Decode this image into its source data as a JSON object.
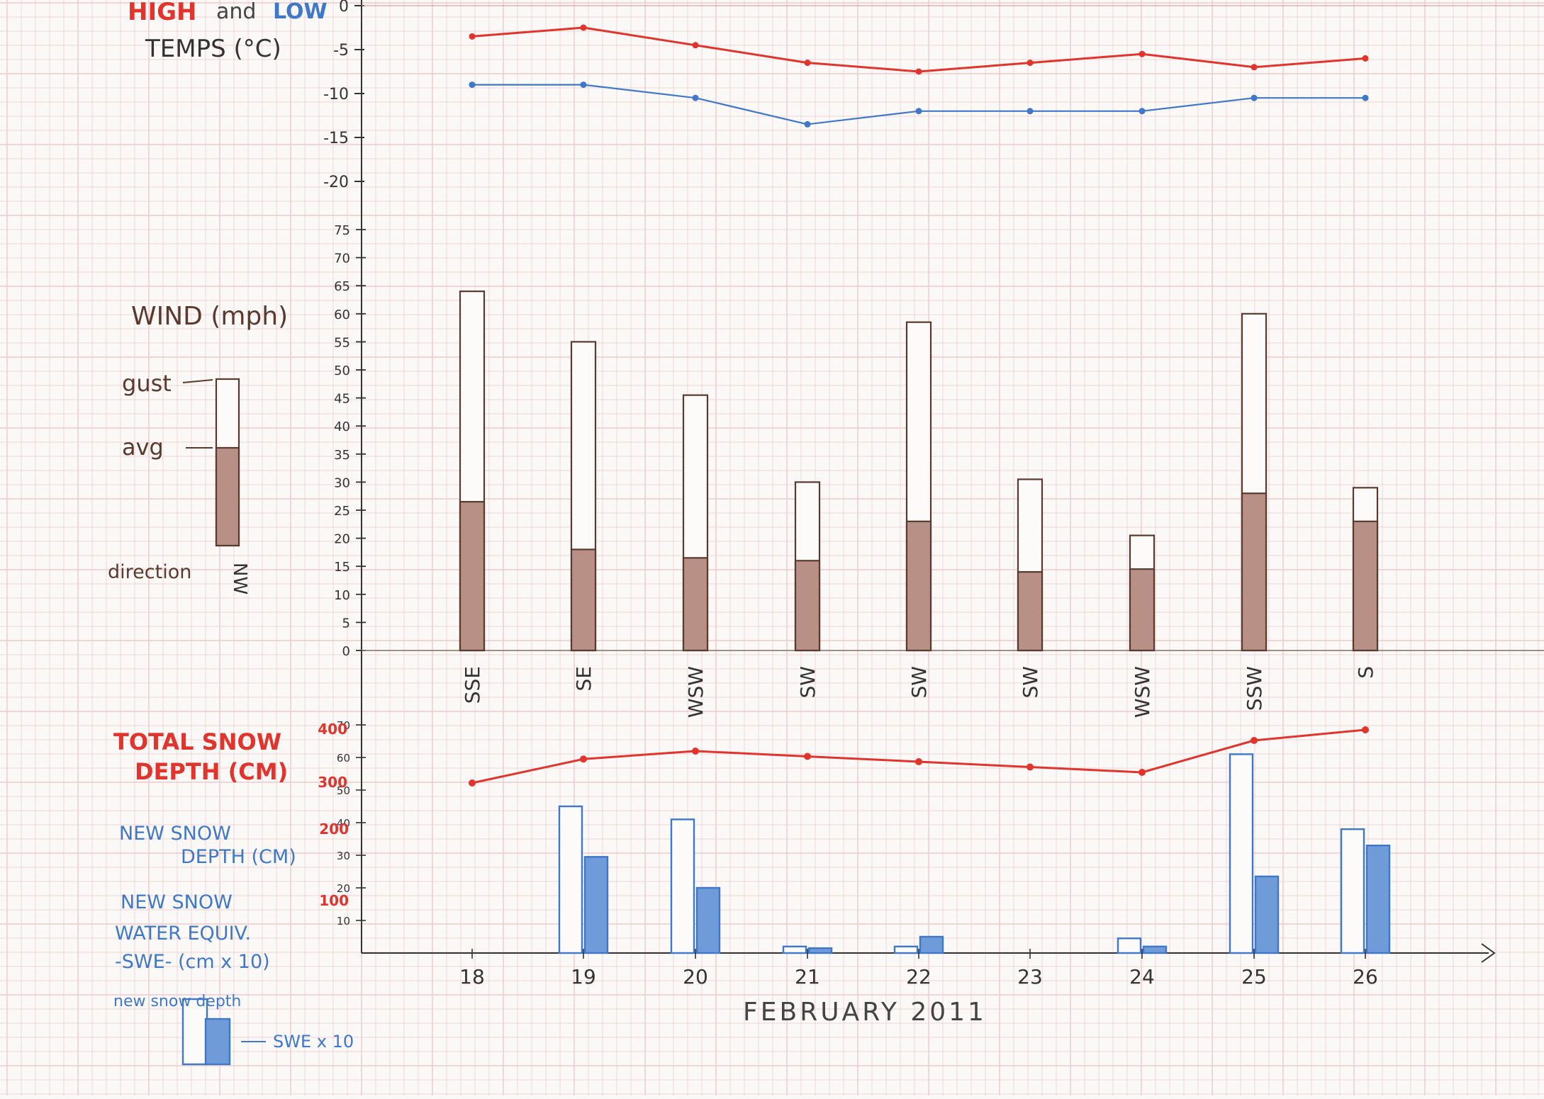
{
  "colors": {
    "paper": "#fbf9f8",
    "grid": "#efc9c9",
    "high": "#e0342c",
    "low": "#3f78c8",
    "wind_ink": "#5a3a2e",
    "wind_fill": "#b89085",
    "snow_total": "#e0342c",
    "snow_new": "#3f78c8",
    "axis": "#333333"
  },
  "chart_data": [
    {
      "type": "line",
      "title_high": "HIGH",
      "title_and": "and",
      "title_low": "LOW",
      "title_rest": "TEMPS (°C)",
      "x": [
        "18",
        "19",
        "20",
        "21",
        "22",
        "23",
        "24",
        "25",
        "26"
      ],
      "series": [
        {
          "name": "HIGH",
          "values": [
            -3.5,
            -2.5,
            -4.5,
            -6.5,
            -7.5,
            -6.5,
            -5.5,
            -7,
            -6
          ]
        },
        {
          "name": "LOW",
          "values": [
            -9,
            -9,
            -10.5,
            -13.5,
            -12,
            -12,
            -12,
            -10.5,
            -10.5
          ]
        }
      ],
      "ylim": [
        -20,
        0
      ],
      "yticks": [
        "0",
        "-5",
        "-10",
        "-15",
        "-20"
      ]
    },
    {
      "type": "bar",
      "title": "WIND (mph)",
      "categories": [
        "18",
        "19",
        "20",
        "21",
        "22",
        "23",
        "24",
        "25",
        "26"
      ],
      "series": [
        {
          "name": "gust",
          "values": [
            64,
            55,
            45.5,
            30,
            58.5,
            30.5,
            20.5,
            60,
            29
          ]
        },
        {
          "name": "avg",
          "values": [
            26.5,
            18,
            16.5,
            16,
            23,
            14,
            14.5,
            28,
            23
          ]
        }
      ],
      "directions": [
        "SSE",
        "SE",
        "WSW",
        "SW",
        "SW",
        "SW",
        "WSW",
        "SSW",
        "S"
      ],
      "ylim": [
        0,
        75
      ],
      "yticks": [
        "0",
        "5",
        "10",
        "15",
        "20",
        "25",
        "30",
        "35",
        "40",
        "45",
        "50",
        "55",
        "60",
        "65",
        "70",
        "75"
      ],
      "legend": {
        "gust": "gust",
        "avg": "avg",
        "direction": "direction",
        "dir_example": "NW"
      }
    },
    {
      "type": "line",
      "title": "TOTAL SNOW DEPTH (CM)",
      "x": [
        "18",
        "19",
        "20",
        "21",
        "22",
        "23",
        "24",
        "25",
        "26"
      ],
      "values": [
        300,
        345,
        360,
        350,
        340,
        330,
        320,
        380,
        400
      ],
      "ylim": [
        300,
        400
      ],
      "yticks": [
        "300",
        "400"
      ]
    },
    {
      "type": "bar",
      "title_depth": "NEW SNOW DEPTH (CM)",
      "title_swe": "NEW SNOW WATER EQUIV. -SWE- (cm x 10)",
      "categories": [
        "18",
        "19",
        "20",
        "21",
        "22",
        "23",
        "24",
        "25",
        "26"
      ],
      "series": [
        {
          "name": "new snow depth",
          "values": [
            0,
            45,
            41,
            2,
            2,
            0,
            4.5,
            61,
            38
          ]
        },
        {
          "name": "SWE x 10",
          "values": [
            0,
            29.5,
            20,
            1.5,
            5,
            0,
            2,
            23.5,
            33
          ]
        }
      ],
      "ylim": [
        0,
        70
      ],
      "yticks_depth": [
        "10",
        "20",
        "30",
        "40",
        "50",
        "60",
        "70"
      ],
      "yticks_swe": [
        "100",
        "200"
      ],
      "legend": {
        "depth": "new snow depth",
        "swe": "SWE x 10"
      },
      "xlabel": "FEBRUARY 2011"
    }
  ]
}
